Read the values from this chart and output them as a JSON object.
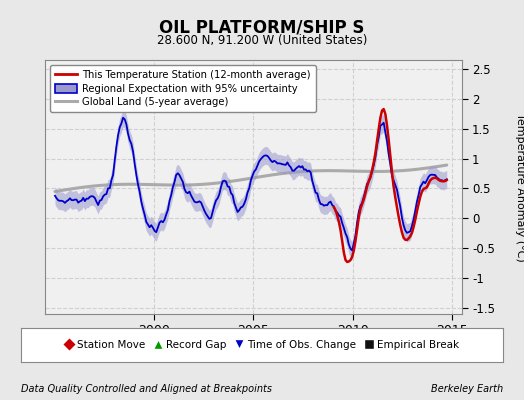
{
  "title": "OIL PLATFORM/SHIP S",
  "subtitle": "28.600 N, 91.200 W (United States)",
  "ylabel": "Temperature Anomaly (°C)",
  "footer_left": "Data Quality Controlled and Aligned at Breakpoints",
  "footer_right": "Berkeley Earth",
  "xlim": [
    1994.5,
    2015.5
  ],
  "ylim": [
    -1.6,
    2.65
  ],
  "yticks": [
    -1.5,
    -1.0,
    -0.5,
    0.0,
    0.5,
    1.0,
    1.5,
    2.0,
    2.5
  ],
  "xticks": [
    2000,
    2005,
    2010,
    2015
  ],
  "xticklabels": [
    "2000",
    "2005",
    "2010",
    "2015"
  ],
  "bg_color": "#e8e8e8",
  "plot_bg_color": "#f0f0f0",
  "grid_color": "#d0d0d0",
  "red_line_color": "#cc0000",
  "blue_line_color": "#0000cc",
  "blue_fill_color": "#9999cc",
  "gray_line_color": "#aaaaaa",
  "legend1_labels": [
    "This Temperature Station (12-month average)",
    "Regional Expectation with 95% uncertainty",
    "Global Land (5-year average)"
  ],
  "legend2_labels": [
    "Station Move",
    "Record Gap",
    "Time of Obs. Change",
    "Empirical Break"
  ],
  "t_start": 1995.0,
  "t_end": 2014.75
}
